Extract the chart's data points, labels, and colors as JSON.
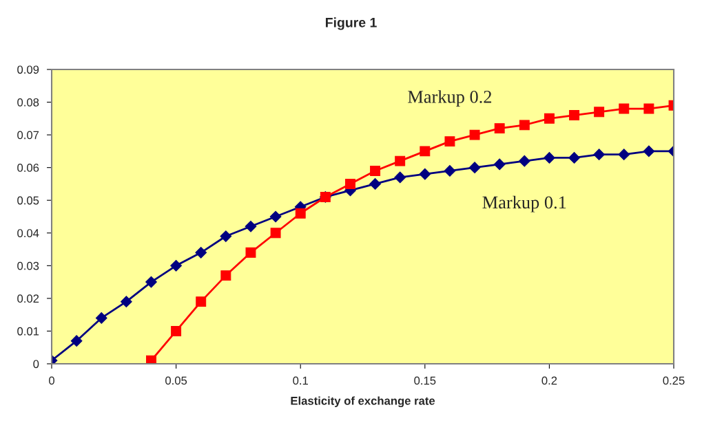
{
  "chart_data": {
    "type": "line",
    "title": "Figure 1",
    "xlabel": "Elasticity of exchange rate",
    "xlim": [
      0,
      0.25
    ],
    "xticks": [
      0,
      0.05,
      0.1,
      0.15,
      0.2,
      0.25
    ],
    "ylim": [
      0,
      0.09
    ],
    "yticks": [
      0,
      0.01,
      0.02,
      0.03,
      0.04,
      0.05,
      0.06,
      0.07,
      0.08,
      0.09
    ],
    "grid": false,
    "legend": false,
    "line_style": "solid",
    "series": [
      {
        "name": "Markup 0.1",
        "color": "#000080",
        "marker": "diamond",
        "x": [
          0,
          0.01,
          0.02,
          0.03,
          0.04,
          0.05,
          0.06,
          0.07,
          0.08,
          0.09,
          0.1,
          0.11,
          0.12,
          0.13,
          0.14,
          0.15,
          0.16,
          0.17,
          0.18,
          0.19,
          0.2,
          0.21,
          0.22,
          0.23,
          0.24,
          0.25
        ],
        "values": [
          0.001,
          0.007,
          0.014,
          0.019,
          0.025,
          0.03,
          0.034,
          0.039,
          0.042,
          0.045,
          0.048,
          0.051,
          0.053,
          0.055,
          0.057,
          0.058,
          0.059,
          0.06,
          0.061,
          0.062,
          0.063,
          0.063,
          0.064,
          0.064,
          0.065,
          0.065
        ]
      },
      {
        "name": "Markup 0.2",
        "color": "#ff0000",
        "marker": "square",
        "x": [
          0.04,
          0.05,
          0.06,
          0.07,
          0.08,
          0.09,
          0.1,
          0.11,
          0.12,
          0.13,
          0.14,
          0.15,
          0.16,
          0.17,
          0.18,
          0.19,
          0.2,
          0.21,
          0.22,
          0.23,
          0.24,
          0.25
        ],
        "values": [
          0.001,
          0.01,
          0.019,
          0.027,
          0.034,
          0.04,
          0.046,
          0.051,
          0.055,
          0.059,
          0.062,
          0.065,
          0.068,
          0.07,
          0.072,
          0.073,
          0.075,
          0.076,
          0.077,
          0.078,
          0.078,
          0.079
        ]
      }
    ]
  }
}
